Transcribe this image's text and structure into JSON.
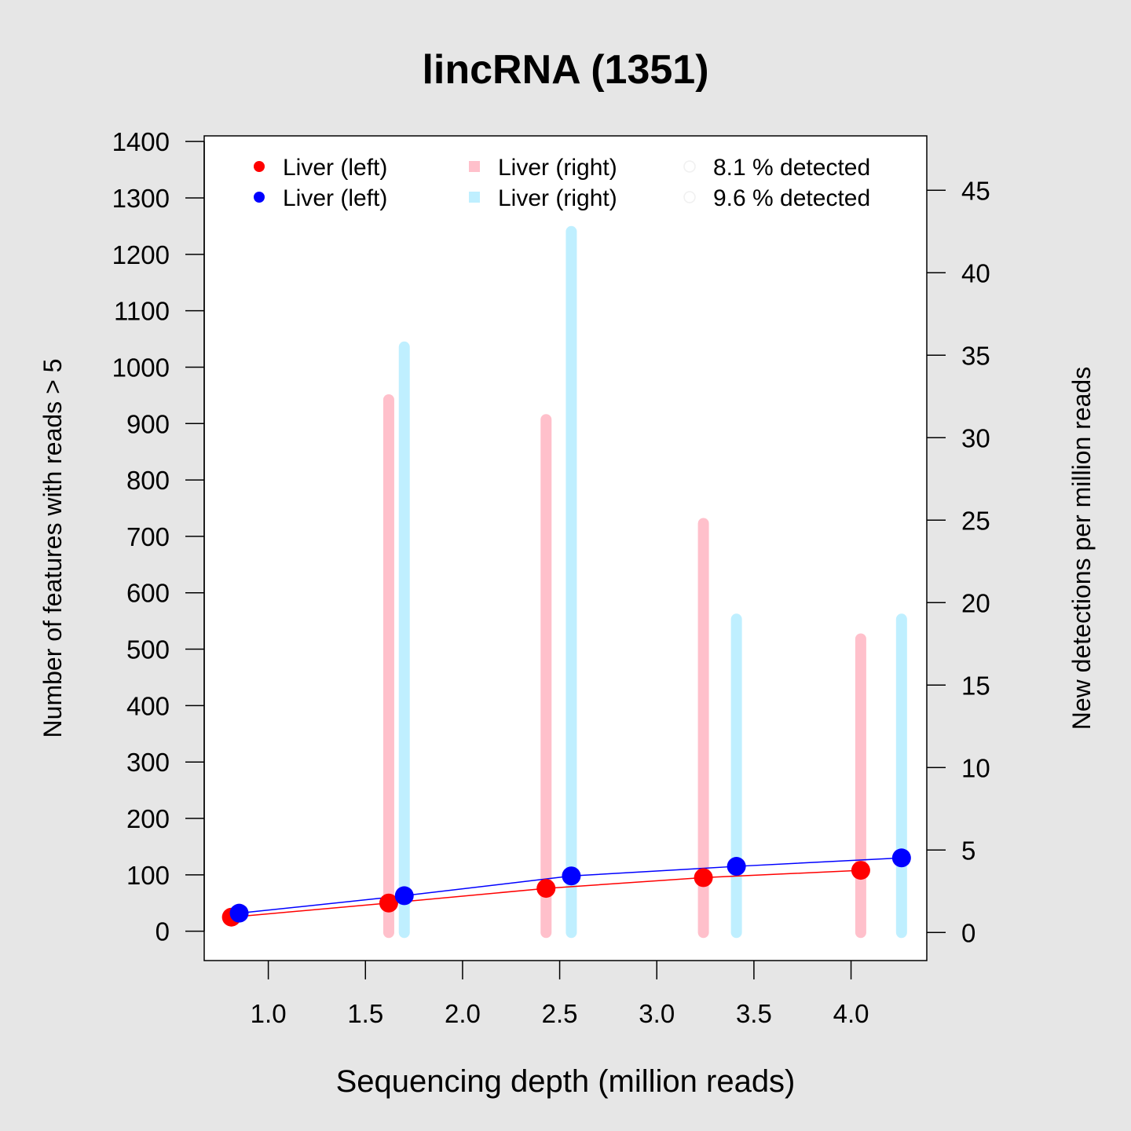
{
  "chart_data": {
    "type": "line",
    "title": "lincRNA (1351)",
    "xlabel": "Sequencing depth (million reads)",
    "ylabel": "Number of features with reads > 5",
    "y2label": "New detections per million reads",
    "xlim": [
      0.67,
      4.39
    ],
    "ylim": [
      -52,
      1410
    ],
    "y2lim": [
      -1.7,
      48.3
    ],
    "x_ticks": [
      "1.0",
      "1.5",
      "2.0",
      "2.5",
      "3.0",
      "3.5",
      "4.0"
    ],
    "y_ticks": [
      "0",
      "100",
      "200",
      "300",
      "400",
      "500",
      "600",
      "700",
      "800",
      "900",
      "1000",
      "1100",
      "1200",
      "1300",
      "1400"
    ],
    "y2_ticks": [
      "0",
      "5",
      "10",
      "15",
      "20",
      "25",
      "30",
      "35",
      "40",
      "45"
    ],
    "grid": false,
    "legend_position": "top",
    "colors": {
      "red": "#ff0000",
      "blue": "#0000ff",
      "pink": "#ffc0cb",
      "lightblue": "#bfefff",
      "background": "#e6e6e6",
      "plot": "#ffffff"
    },
    "series": [
      {
        "name": "Liver (left)",
        "type": "line",
        "axis": "left",
        "color": "#ff0000",
        "x": [
          0.81,
          1.62,
          2.43,
          3.24,
          4.05
        ],
        "y": [
          25,
          50,
          76,
          95,
          108
        ]
      },
      {
        "name": "Liver (left)",
        "type": "line",
        "axis": "left",
        "color": "#0000ff",
        "x": [
          0.85,
          1.7,
          2.56,
          3.41,
          4.26
        ],
        "y": [
          32,
          63,
          98,
          115,
          130
        ]
      },
      {
        "name": "Liver (right)",
        "type": "bar",
        "axis": "right",
        "color": "#ffc0cb",
        "x": [
          1.62,
          2.43,
          3.24,
          4.05
        ],
        "y": [
          32.3,
          31.1,
          24.8,
          17.8
        ]
      },
      {
        "name": "Liver (right)",
        "type": "bar",
        "axis": "right",
        "color": "#bfefff",
        "x": [
          1.7,
          2.56,
          3.41,
          4.26
        ],
        "y": [
          35.5,
          42.5,
          19.0,
          19.0
        ]
      }
    ],
    "legend": [
      {
        "label": "Liver (left)",
        "color": "#ff0000",
        "symbol": "dot"
      },
      {
        "label": "Liver (left)",
        "color": "#0000ff",
        "symbol": "dot"
      },
      {
        "label": "Liver (right)",
        "color": "#ffc0cb",
        "symbol": "square"
      },
      {
        "label": "Liver (right)",
        "color": "#bfefff",
        "symbol": "square"
      },
      {
        "label": "8.1 % detected",
        "color": "#ffffff",
        "symbol": "circle-open"
      },
      {
        "label": "9.6 % detected",
        "color": "#ffffff",
        "symbol": "circle-open"
      }
    ]
  }
}
